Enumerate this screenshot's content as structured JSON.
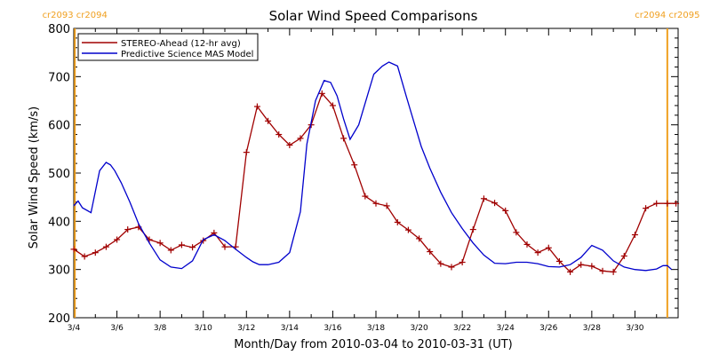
{
  "chart_data": {
    "type": "line",
    "title": "Solar Wind Speed Comparisons",
    "xlabel": "Month/Day from 2010-03-04 to 2010-03-31 (UT)",
    "ylabel": "Solar Wind Speed (km/s)",
    "xlim": [
      0,
      28
    ],
    "ylim": [
      200,
      800
    ],
    "x_ticks": [
      "3/4",
      "3/6",
      "3/8",
      "3/10",
      "3/12",
      "3/14",
      "3/16",
      "3/18",
      "3/20",
      "3/22",
      "3/24",
      "3/26",
      "3/28",
      "3/30"
    ],
    "y_ticks": [
      200,
      300,
      400,
      500,
      600,
      700,
      800
    ],
    "carrington_markers": [
      {
        "x": 0.05,
        "label_left": "cr2093",
        "label_right": "cr2094"
      },
      {
        "x": 27.5,
        "label_left": "cr2094",
        "label_right": "cr2095"
      }
    ],
    "legend": {
      "placement": "top-left"
    },
    "series": [
      {
        "name": "STEREO-Ahead (12-hr avg)",
        "color": "#a00000",
        "marker": "plus",
        "x": [
          0.0,
          0.5,
          1.0,
          1.5,
          2.0,
          2.5,
          3.0,
          3.5,
          4.0,
          4.5,
          5.0,
          5.5,
          6.0,
          6.5,
          7.0,
          7.5,
          8.0,
          8.5,
          9.0,
          9.5,
          10.0,
          10.5,
          11.0,
          11.5,
          12.0,
          12.5,
          13.0,
          13.5,
          14.0,
          14.5,
          15.0,
          15.5,
          16.0,
          16.5,
          17.0,
          17.5,
          18.0,
          18.5,
          19.0,
          19.5,
          20.0,
          20.5,
          21.0,
          21.5,
          22.0,
          22.5,
          23.0,
          23.5,
          24.0,
          24.5,
          25.0,
          25.5,
          26.0,
          26.5,
          27.0,
          27.5,
          27.9
        ],
        "values": [
          342,
          327,
          335,
          347,
          362,
          383,
          388,
          362,
          355,
          340,
          351,
          346,
          360,
          376,
          347,
          347,
          543,
          638,
          608,
          580,
          558,
          572,
          600,
          665,
          640,
          572,
          517,
          452,
          437,
          432,
          398,
          382,
          364,
          337,
          312,
          305,
          315,
          383,
          447,
          438,
          422,
          377,
          352,
          335,
          345,
          317,
          295,
          310,
          307,
          297,
          295,
          328,
          372,
          427,
          437,
          437,
          437
        ]
      },
      {
        "name": "Predictive Science MAS Model",
        "color": "#0000cc",
        "x": [
          0.0,
          0.2,
          0.4,
          0.8,
          1.2,
          1.5,
          1.7,
          1.9,
          2.2,
          2.6,
          3.0,
          3.5,
          4.0,
          4.5,
          5.0,
          5.5,
          6.0,
          6.5,
          7.0,
          7.5,
          8.0,
          8.3,
          8.6,
          9.0,
          9.5,
          10.0,
          10.5,
          10.8,
          11.2,
          11.6,
          11.9,
          12.2,
          12.5,
          12.8,
          13.2,
          13.6,
          13.9,
          14.3,
          14.6,
          15.0,
          15.4,
          15.8,
          16.1,
          16.5,
          17.0,
          17.5,
          18.0,
          18.5,
          19.0,
          19.5,
          20.0,
          20.5,
          21.0,
          21.5,
          22.0,
          22.5,
          23.0,
          23.5,
          24.0,
          24.5,
          25.0,
          25.5,
          26.0,
          26.5,
          27.0,
          27.3,
          27.5,
          27.7
        ],
        "values": [
          432,
          442,
          428,
          418,
          505,
          522,
          517,
          505,
          480,
          440,
          395,
          355,
          320,
          305,
          302,
          318,
          362,
          372,
          360,
          342,
          325,
          316,
          310,
          310,
          315,
          335,
          420,
          560,
          650,
          692,
          688,
          660,
          612,
          570,
          600,
          660,
          705,
          722,
          730,
          722,
          660,
          600,
          555,
          510,
          460,
          418,
          385,
          355,
          330,
          313,
          312,
          315,
          315,
          312,
          306,
          305,
          310,
          325,
          350,
          340,
          318,
          305,
          300,
          298,
          301,
          308,
          308,
          300
        ]
      }
    ]
  }
}
